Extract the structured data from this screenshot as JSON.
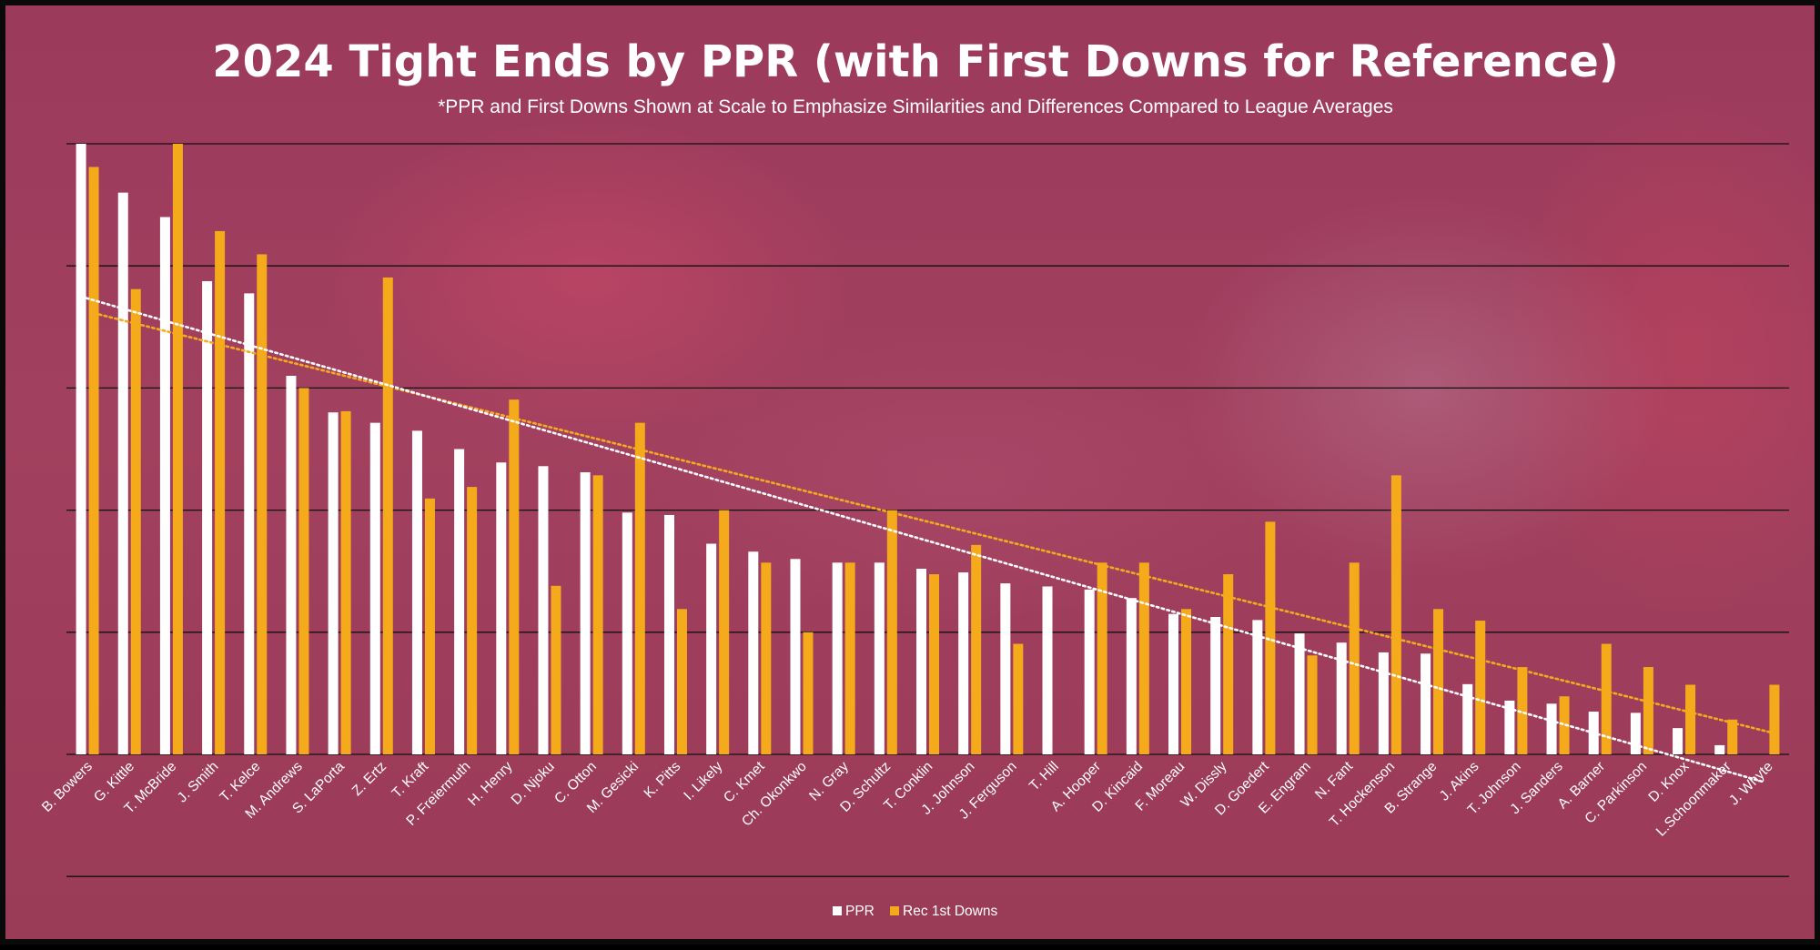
{
  "chart_data": {
    "type": "bar",
    "title": "2024 Tight Ends by PPR (with First Downs for Reference)",
    "subtitle": "*PPR and First Downs Shown at Scale to Emphasize Similarities and Differences Compared to League Averages",
    "categories": [
      "B. Bowers",
      "G. Kittle",
      "T. McBride",
      "J. Smith",
      "T. Kelce",
      "M. Andrews",
      "S. LaPorta",
      "Z. Ertz",
      "T. Kraft",
      "P. Freiermuth",
      "H. Henry",
      "D. Njoku",
      "C. Otton",
      "M. Gesicki",
      "K. Pitts",
      "I. Likely",
      "C. Kmet",
      "Ch. Okonkwo",
      "N. Gray",
      "D. Schultz",
      "T. Conklin",
      "J. Johnson",
      "J. Ferguson",
      "T. Hill",
      "A. Hooper",
      "D. Kincaid",
      "F. Moreau",
      "W. Dissly",
      "D. Goedert",
      "E. Engram",
      "N. Fant",
      "T. Hockenson",
      "B. Strange",
      "J. Akins",
      "T. Johnson",
      "J. Sanders",
      "A. Barner",
      "C. Parkinson",
      "D. Knox",
      "L.Schoonmaker",
      "J. Whyte"
    ],
    "series": [
      {
        "name": "PPR",
        "color": "#ffffff",
        "values": [
          100,
          92,
          88,
          77.5,
          75.5,
          62,
          56,
          54.3,
          53,
          50,
          47.8,
          47.2,
          46.2,
          39.6,
          39.2,
          34.5,
          33.2,
          32,
          31.4,
          31.4,
          30.4,
          29.8,
          28,
          27.5,
          27,
          25.6,
          23,
          22.5,
          22,
          19.8,
          18.3,
          16.7,
          16.5,
          11.5,
          8.8,
          8.3,
          7,
          6.8,
          4.3,
          1.5,
          0
        ]
      },
      {
        "name": "Rec 1st Downs",
        "color": "#f5aa1c",
        "values": [
          96.2,
          76.2,
          100,
          85.7,
          81.9,
          60,
          56.2,
          78.1,
          41.9,
          43.8,
          58.1,
          27.6,
          45.7,
          54.3,
          23.8,
          40,
          31.4,
          20,
          31.4,
          40,
          29.5,
          34.3,
          18.1,
          0,
          31.4,
          31.4,
          23.8,
          29.5,
          38.1,
          16.2,
          31.4,
          45.7,
          23.8,
          21.9,
          14.3,
          9.5,
          18.1,
          14.3,
          11.4,
          5.7,
          11.4
        ]
      }
    ],
    "trendlines": [
      {
        "series": "PPR",
        "color": "#ffffff",
        "style": "dotted",
        "type": "linear"
      },
      {
        "series": "Rec 1st Downs",
        "color": "#f5aa1c",
        "style": "dotted",
        "type": "linear"
      }
    ],
    "ylim": [
      -20,
      100
    ],
    "gridlines": [
      -20,
      0,
      20,
      40,
      60,
      80,
      100
    ],
    "y_tick_labels_shown": false,
    "grid": true,
    "legend_position": "bottom-center",
    "xlabel": "",
    "ylabel": ""
  }
}
